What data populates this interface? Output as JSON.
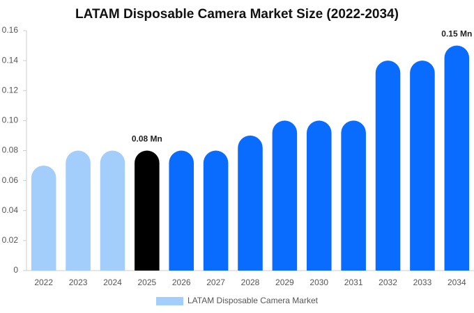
{
  "chart_data": {
    "type": "bar",
    "title": "LATAM Disposable Camera Market Size (2022-2034)",
    "categories": [
      "2022",
      "2023",
      "2024",
      "2025",
      "2026",
      "2027",
      "2028",
      "2029",
      "2030",
      "2031",
      "2032",
      "2033",
      "2034"
    ],
    "series": [
      {
        "name": "LATAM Disposable Camera Market",
        "color": "#a3cdfb",
        "values": [
          0.07,
          0.08,
          0.08,
          0.08,
          0.08,
          0.08,
          0.09,
          0.1,
          0.1,
          0.1,
          0.14,
          0.14,
          0.15
        ],
        "colors": [
          "#a3cdfb",
          "#a3cdfb",
          "#a3cdfb",
          "#000000",
          "#0a6cff",
          "#0a6cff",
          "#0a6cff",
          "#0a6cff",
          "#0a6cff",
          "#0a6cff",
          "#0a6cff",
          "#0a6cff",
          "#0a6cff"
        ],
        "value_labels": [
          null,
          null,
          null,
          "0.08 Mn",
          null,
          null,
          null,
          null,
          null,
          null,
          null,
          null,
          "0.15 Mn"
        ]
      }
    ],
    "ylim": [
      0,
      0.16
    ],
    "yticks": [
      0,
      0.02,
      0.04,
      0.06,
      0.08,
      {
        "value": 0.1,
        "label": "0.10"
      },
      0.12,
      0.14,
      0.16
    ],
    "grid": false,
    "legend": "bottom"
  }
}
